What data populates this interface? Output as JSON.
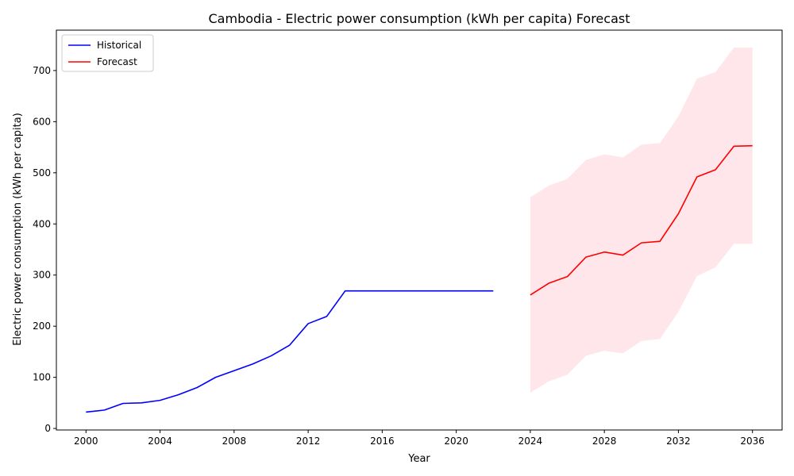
{
  "chart_data": {
    "type": "line",
    "title": "Cambodia - Electric power consumption (kWh per capita) Forecast",
    "xlabel": "Year",
    "ylabel": "Electric power consumption (kWh per capita)",
    "xlim": [
      1998.4,
      2037.6
    ],
    "ylim": [
      -3,
      779
    ],
    "xticks": [
      2000,
      2004,
      2008,
      2012,
      2016,
      2020,
      2024,
      2028,
      2032,
      2036
    ],
    "yticks": [
      0,
      100,
      200,
      300,
      400,
      500,
      600,
      700
    ],
    "grid": false,
    "legend_position": "top-left",
    "series": [
      {
        "name": "Historical",
        "color": "#0000ff",
        "x": [
          2000,
          2001,
          2002,
          2003,
          2004,
          2005,
          2006,
          2007,
          2008,
          2009,
          2010,
          2011,
          2012,
          2013,
          2014,
          2015,
          2016,
          2017,
          2018,
          2019,
          2020,
          2021,
          2022
        ],
        "y": [
          32,
          36,
          49,
          50,
          55,
          66,
          80,
          100,
          113,
          126,
          142,
          163,
          205,
          219,
          269,
          269,
          269,
          269,
          269,
          269,
          269,
          269,
          269
        ]
      },
      {
        "name": "Forecast",
        "color": "#ff0000",
        "x": [
          2024,
          2025,
          2026,
          2027,
          2028,
          2029,
          2030,
          2031,
          2032,
          2033,
          2034,
          2035,
          2036
        ],
        "y": [
          261,
          284,
          297,
          335,
          345,
          339,
          363,
          366,
          420,
          492,
          506,
          552,
          553
        ]
      }
    ],
    "confidence_band": {
      "series": "Forecast",
      "color": "#ffc0cb",
      "opacity": 0.4,
      "x": [
        2024,
        2025,
        2026,
        2027,
        2028,
        2029,
        2030,
        2031,
        2032,
        2033,
        2034,
        2035,
        2036
      ],
      "lower": [
        70,
        92,
        105,
        142,
        152,
        147,
        171,
        175,
        228,
        298,
        315,
        361,
        361
      ],
      "upper": [
        452,
        475,
        488,
        525,
        536,
        530,
        555,
        558,
        610,
        684,
        697,
        745,
        745
      ]
    }
  }
}
